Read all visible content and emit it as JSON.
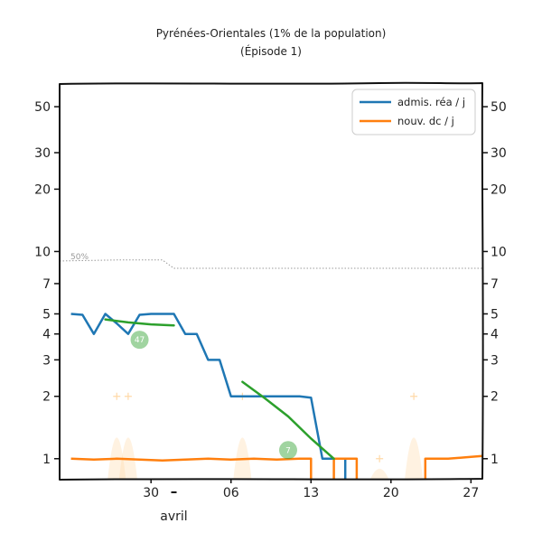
{
  "chart_data": {
    "type": "line",
    "title": "Pyrénées-Orientales (1% de la population)",
    "subtitle": "(Épisode 1)",
    "xlabel": "",
    "ylabel": "",
    "x_scale": "date",
    "y_scale": "log",
    "xlim": [
      "2020-03-22",
      "2020-04-28"
    ],
    "ylim": [
      0.8,
      65
    ],
    "x_ticks": [
      {
        "date": "2020-03-30",
        "label": "30"
      },
      {
        "date": "2020-04-06",
        "label": "06"
      },
      {
        "date": "2020-04-13",
        "label": "13"
      },
      {
        "date": "2020-04-20",
        "label": "20"
      },
      {
        "date": "2020-04-27",
        "label": "27"
      }
    ],
    "month_label": {
      "date": "2020-04-01",
      "label": "avril"
    },
    "y_ticks": [
      1,
      2,
      3,
      4,
      5,
      7,
      10,
      20,
      30,
      50
    ],
    "y_tick_labels": [
      "1",
      "2",
      "3",
      "4",
      "5",
      "7",
      "10",
      "20",
      "30",
      "50"
    ],
    "legend": {
      "position": "top-right",
      "entries": [
        {
          "label": "admis. réa / j",
          "color": "#1f77b4"
        },
        {
          "label": "nouv. dc / j",
          "color": "#ff7f0e"
        }
      ]
    },
    "series": [
      {
        "name": "admis. réa / j",
        "color": "#1f77b4",
        "points": [
          [
            "2020-03-23",
            5
          ],
          [
            "2020-03-24",
            4.95
          ],
          [
            "2020-03-25",
            4
          ],
          [
            "2020-03-26",
            5
          ],
          [
            "2020-03-27",
            4.5
          ],
          [
            "2020-03-28",
            4
          ],
          [
            "2020-03-29",
            4.95
          ],
          [
            "2020-03-30",
            5
          ],
          [
            "2020-03-31",
            5
          ],
          [
            "2020-04-01",
            5
          ],
          [
            "2020-04-02",
            4
          ],
          [
            "2020-04-03",
            4
          ],
          [
            "2020-04-04",
            3
          ],
          [
            "2020-04-05",
            3
          ],
          [
            "2020-04-06",
            2
          ],
          [
            "2020-04-07",
            2
          ],
          [
            "2020-04-08",
            2
          ],
          [
            "2020-04-09",
            2
          ],
          [
            "2020-04-10",
            2
          ],
          [
            "2020-04-11",
            2
          ],
          [
            "2020-04-12",
            2
          ],
          [
            "2020-04-13",
            1.97
          ],
          [
            "2020-04-14",
            1
          ],
          [
            "2020-04-15",
            1
          ]
        ],
        "tail": [
          [
            "2020-04-16",
            1
          ],
          [
            "2020-04-16",
            0.8
          ]
        ]
      },
      {
        "name": "nouv. dc / j",
        "color": "#ff7f0e",
        "segments": [
          [
            [
              "2020-03-23",
              1
            ],
            [
              "2020-03-25",
              0.99
            ],
            [
              "2020-03-27",
              1
            ],
            [
              "2020-03-29",
              0.99
            ],
            [
              "2020-03-31",
              0.98
            ],
            [
              "2020-04-02",
              0.99
            ],
            [
              "2020-04-04",
              1
            ],
            [
              "2020-04-06",
              0.99
            ],
            [
              "2020-04-08",
              1
            ],
            [
              "2020-04-10",
              0.99
            ],
            [
              "2020-04-12",
              1
            ],
            [
              "2020-04-13",
              1
            ],
            [
              "2020-04-13",
              0.8
            ]
          ],
          [
            [
              "2020-04-15",
              0.8
            ],
            [
              "2020-04-15",
              1
            ],
            [
              "2020-04-17",
              1
            ],
            [
              "2020-04-17",
              0.8
            ]
          ],
          [
            [
              "2020-04-23",
              0.8
            ],
            [
              "2020-04-23",
              1
            ],
            [
              "2020-04-25",
              1
            ],
            [
              "2020-04-27",
              1.02
            ],
            [
              "2020-04-28",
              1.03
            ]
          ]
        ]
      }
    ],
    "trend_lines": [
      {
        "color": "#2ca02c",
        "points": [
          [
            "2020-03-26",
            4.7
          ],
          [
            "2020-03-28",
            4.55
          ],
          [
            "2020-03-30",
            4.45
          ],
          [
            "2020-04-01",
            4.4
          ]
        ],
        "badge": "47",
        "badge_at": [
          "2020-03-29",
          3.75
        ]
      },
      {
        "color": "#2ca02c",
        "points": [
          [
            "2020-04-07",
            2.35
          ],
          [
            "2020-04-09",
            1.95
          ],
          [
            "2020-04-11",
            1.6
          ],
          [
            "2020-04-13",
            1.25
          ],
          [
            "2020-04-15",
            1.0
          ]
        ],
        "badge": "7",
        "badge_at": [
          "2020-04-11",
          1.1
        ]
      }
    ],
    "threshold": {
      "label": "50%",
      "color": "#9a9a9a",
      "points": [
        [
          "2020-03-22",
          9
        ],
        [
          "2020-03-27",
          9.1
        ],
        [
          "2020-03-31",
          9.1
        ],
        [
          "2020-04-01",
          8.3
        ],
        [
          "2020-04-28",
          8.3
        ]
      ]
    },
    "background_markers": {
      "color": "#ffd9a8",
      "points": [
        [
          "2020-03-27",
          2
        ],
        [
          "2020-03-28",
          2
        ],
        [
          "2020-04-07",
          2
        ],
        [
          "2020-04-19",
          1
        ],
        [
          "2020-04-22",
          2
        ]
      ]
    }
  }
}
